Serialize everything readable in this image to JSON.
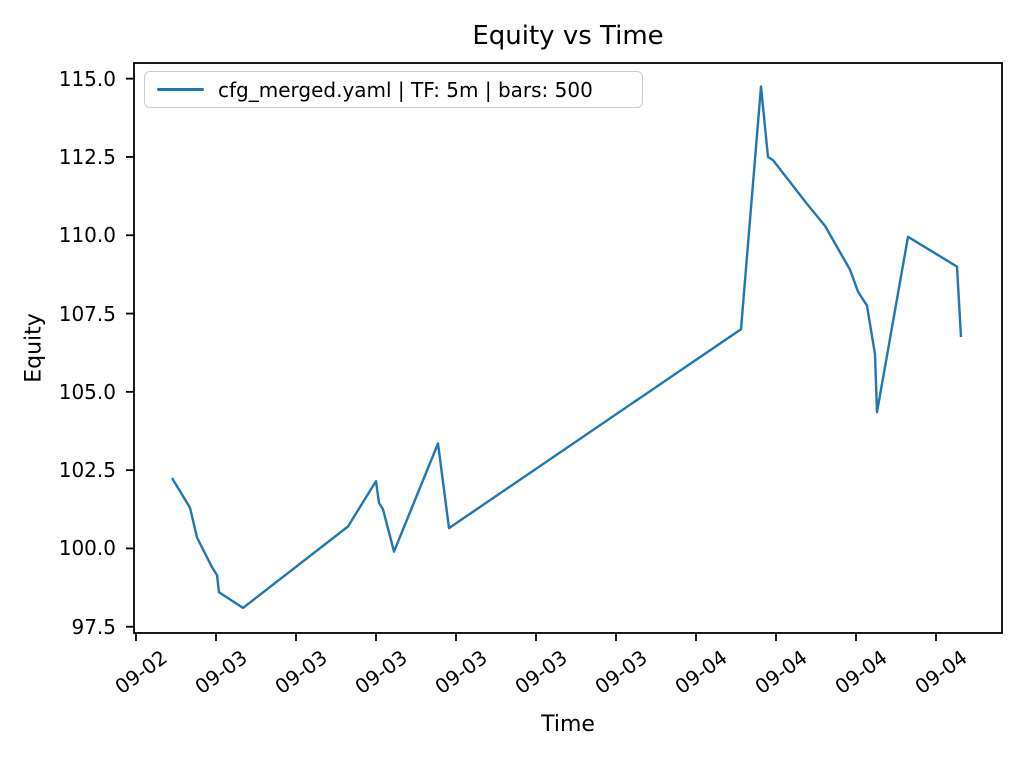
{
  "chart_data": {
    "type": "line",
    "title": "Equity vs Time",
    "xlabel": "Time",
    "ylabel": "Equity",
    "grid": false,
    "legend_position": "upper left",
    "y_ticks": [
      97.5,
      100.0,
      102.5,
      105.0,
      107.5,
      110.0,
      112.5,
      115.0
    ],
    "x_ticks": [
      {
        "label": "09-02",
        "hour": 20
      },
      {
        "label": "09-03",
        "hour": 24
      },
      {
        "label": "09-03",
        "hour": 28
      },
      {
        "label": "09-03",
        "hour": 32
      },
      {
        "label": "09-03",
        "hour": 36
      },
      {
        "label": "09-03",
        "hour": 40
      },
      {
        "label": "09-03",
        "hour": 44
      },
      {
        "label": "09-04",
        "hour": 48
      },
      {
        "label": "09-04",
        "hour": 52
      },
      {
        "label": "09-04",
        "hour": 56
      },
      {
        "label": "09-04",
        "hour": 60
      }
    ],
    "xlim_hours": [
      19.9,
      63.3
    ],
    "ylim": [
      97.3,
      115.5
    ],
    "series": [
      {
        "name": "cfg_merged.yaml | TF: 5m | bars: 500",
        "color": "#1f77b4",
        "points": [
          {
            "time": "09-02 21:48",
            "equity": 102.25
          },
          {
            "time": "09-02 22:42",
            "equity": 101.3
          },
          {
            "time": "09-02 23:03",
            "equity": 100.35
          },
          {
            "time": "09-02 23:48",
            "equity": 99.4
          },
          {
            "time": "09-03 00:03",
            "equity": 99.15
          },
          {
            "time": "09-03 00:09",
            "equity": 98.6
          },
          {
            "time": "09-03 01:21",
            "equity": 98.1
          },
          {
            "time": "09-03 06:36",
            "equity": 100.7
          },
          {
            "time": "09-03 08:00",
            "equity": 102.15
          },
          {
            "time": "09-03 08:09",
            "equity": 101.45
          },
          {
            "time": "09-03 08:21",
            "equity": 101.25
          },
          {
            "time": "09-03 08:54",
            "equity": 99.9
          },
          {
            "time": "09-03 11:06",
            "equity": 103.35
          },
          {
            "time": "09-03 11:39",
            "equity": 100.65
          },
          {
            "time": "09-04 02:15",
            "equity": 107.0
          },
          {
            "time": "09-04 03:15",
            "equity": 114.75
          },
          {
            "time": "09-04 03:36",
            "equity": 112.5
          },
          {
            "time": "09-04 03:51",
            "equity": 112.4
          },
          {
            "time": "09-04 04:42",
            "equity": 111.7
          },
          {
            "time": "09-04 05:33",
            "equity": 111.0
          },
          {
            "time": "09-04 06:27",
            "equity": 110.3
          },
          {
            "time": "09-04 07:42",
            "equity": 108.9
          },
          {
            "time": "09-04 08:06",
            "equity": 108.2
          },
          {
            "time": "09-04 08:33",
            "equity": 107.75
          },
          {
            "time": "09-04 08:57",
            "equity": 106.2
          },
          {
            "time": "09-04 09:03",
            "equity": 104.35
          },
          {
            "time": "09-04 10:36",
            "equity": 109.95
          },
          {
            "time": "09-04 13:03",
            "equity": 109.0
          },
          {
            "time": "09-04 13:15",
            "equity": 106.75
          }
        ]
      }
    ]
  },
  "legend": {
    "label": "cfg_merged.yaml | TF: 5m | bars: 500",
    "line_color": "#1f77b4"
  },
  "colors": {
    "line": "#1f77b4",
    "axes": "#000000",
    "legend_border": "#cccccc",
    "background": "#ffffff"
  }
}
